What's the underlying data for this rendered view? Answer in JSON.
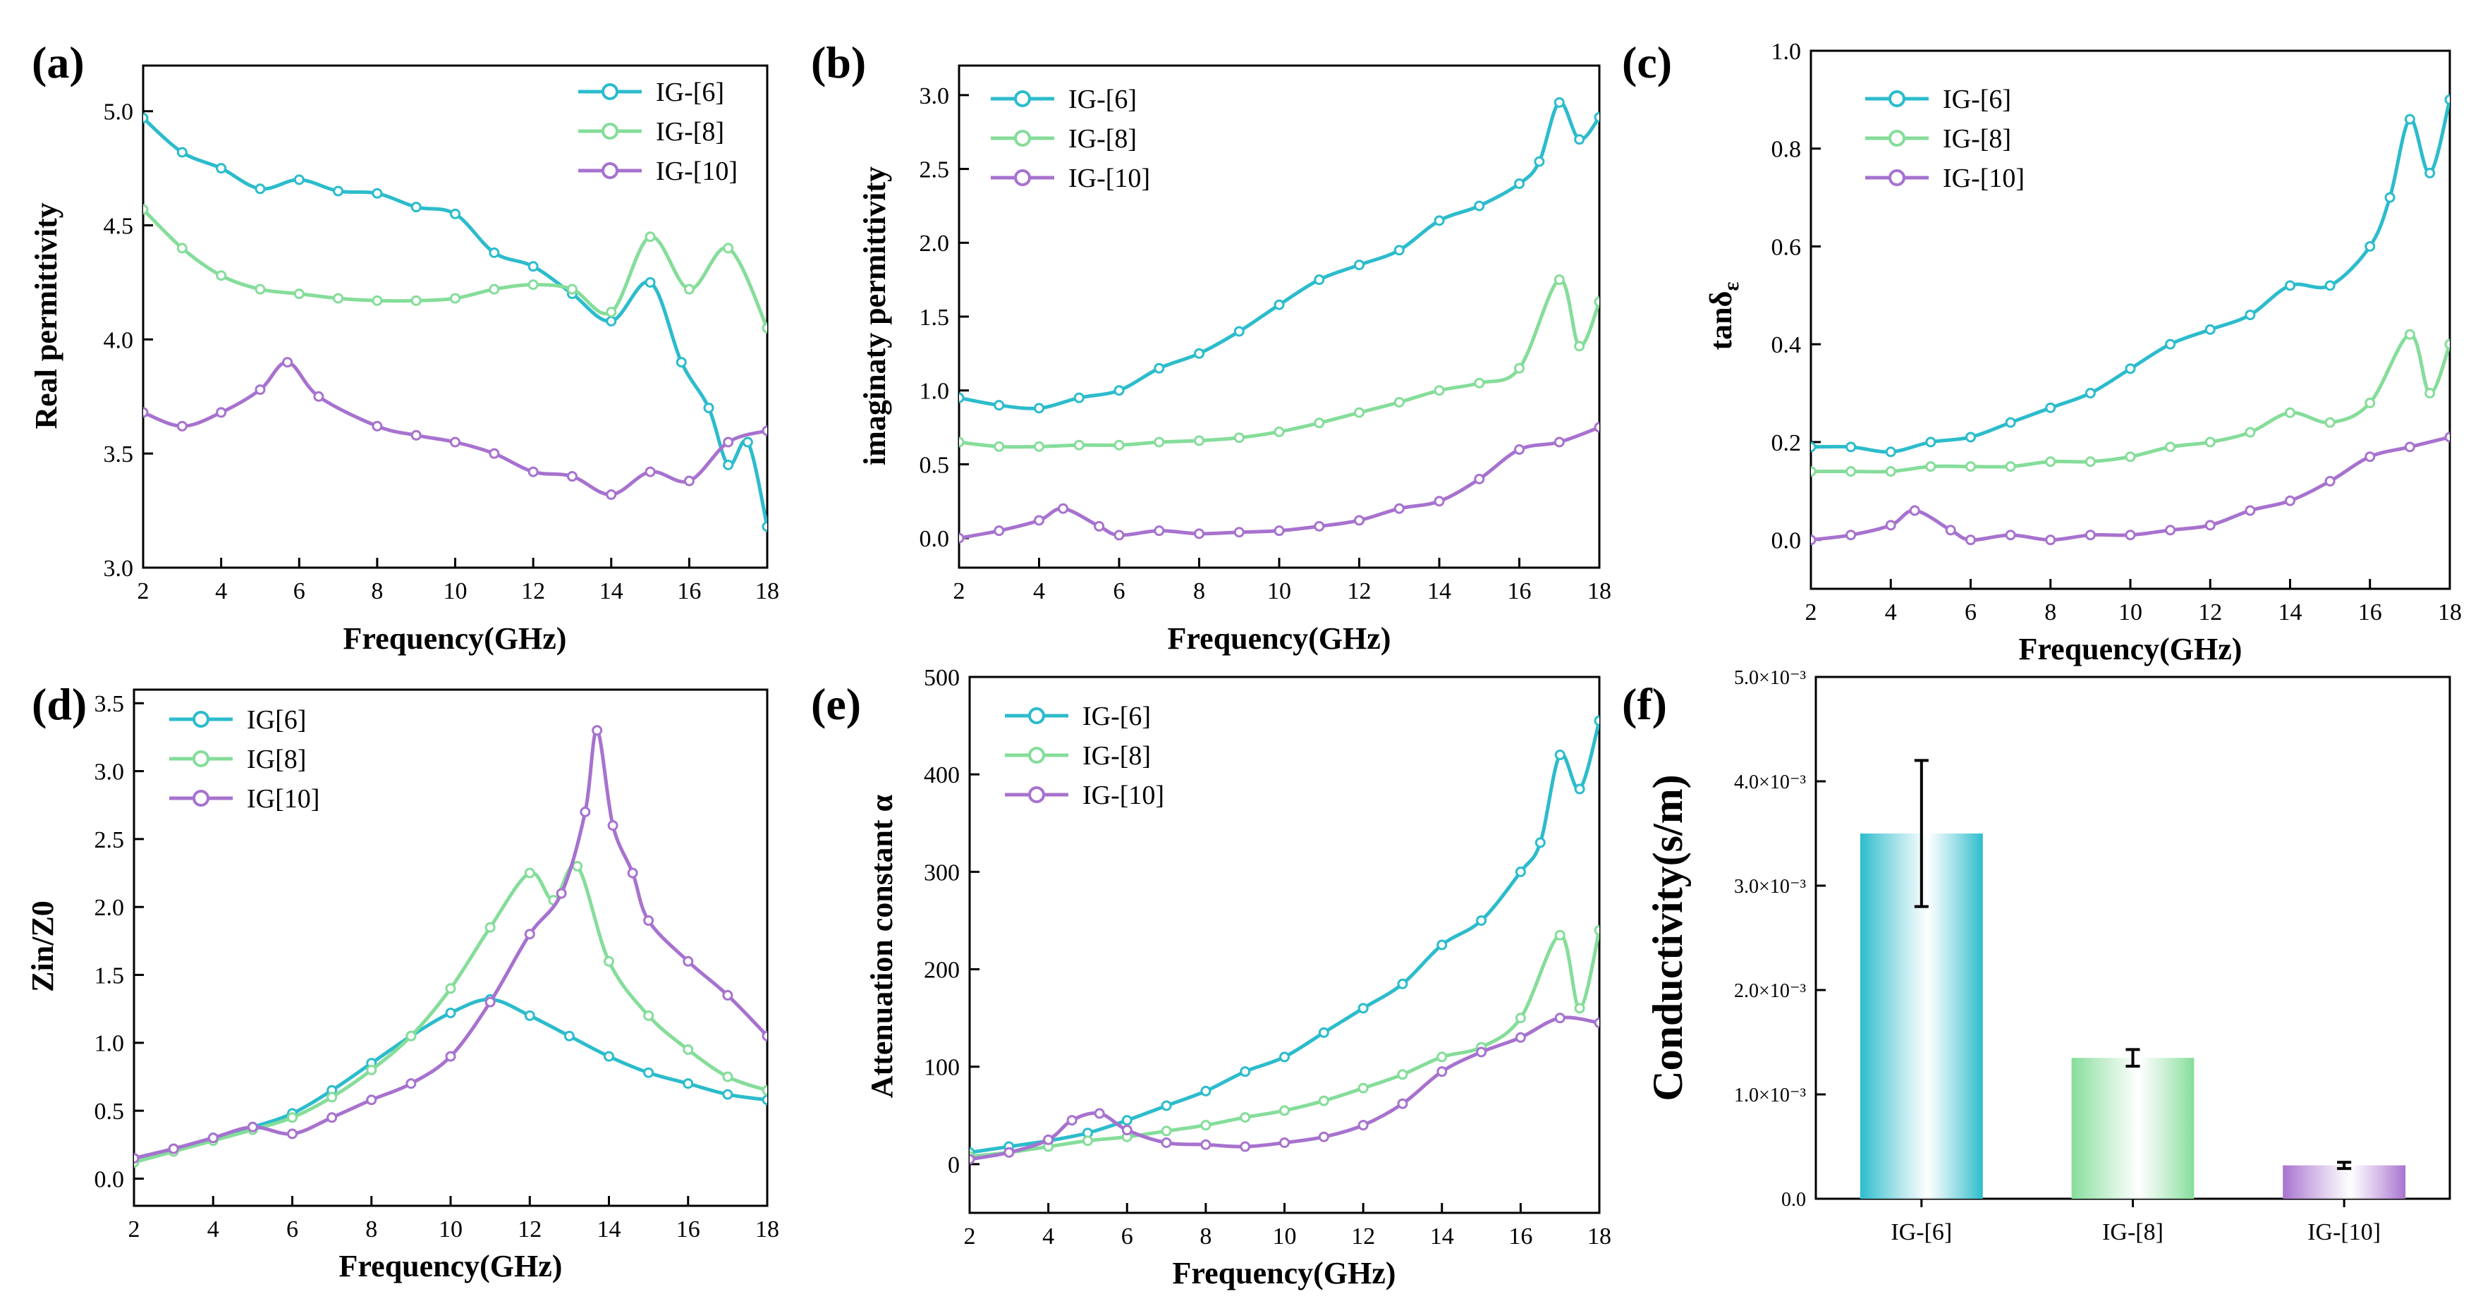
{
  "figure": {
    "colors": {
      "IG6": "#2cbccc",
      "IG8": "#85dd9a",
      "IG10": "#a772cf"
    }
  },
  "chart_data": [
    {
      "id": "a",
      "label": "(a)",
      "type": "line",
      "xlabel": "Frequency(GHz)",
      "ylabel": "Real permittivity",
      "xlim": [
        2,
        18
      ],
      "ylim": [
        3.0,
        5.2
      ],
      "xticks": [
        2,
        4,
        6,
        8,
        10,
        12,
        14,
        16,
        18
      ],
      "yticks": [
        3.0,
        3.5,
        4.0,
        4.5,
        5.0
      ],
      "xtick_labels": [
        "2",
        "4",
        "6",
        "8",
        "10",
        "12",
        "14",
        "16",
        "18"
      ],
      "ytick_labels": [
        "3.0",
        "3.5",
        "4.0",
        "4.5",
        "5.0"
      ],
      "legend": [
        "IG-[6]",
        "IG-[8]",
        "IG-[10]"
      ],
      "series": [
        {
          "name": "IG-[6]",
          "color": "#2cbccc",
          "x": [
            2,
            3,
            4,
            5,
            6,
            7,
            8,
            9,
            10,
            11,
            12,
            13,
            14,
            15,
            15.8,
            16.5,
            17,
            17.5,
            18
          ],
          "y": [
            4.97,
            4.82,
            4.75,
            4.66,
            4.7,
            4.65,
            4.64,
            4.58,
            4.55,
            4.38,
            4.32,
            4.2,
            4.08,
            4.25,
            3.9,
            3.7,
            3.45,
            3.55,
            3.18
          ]
        },
        {
          "name": "IG-[8]",
          "color": "#85dd9a",
          "x": [
            2,
            3,
            4,
            5,
            6,
            7,
            8,
            9,
            10,
            11,
            12,
            13,
            14,
            15,
            16,
            17,
            18
          ],
          "y": [
            4.57,
            4.4,
            4.28,
            4.22,
            4.2,
            4.18,
            4.17,
            4.17,
            4.18,
            4.22,
            4.24,
            4.22,
            4.12,
            4.45,
            4.22,
            4.4,
            4.05
          ]
        },
        {
          "name": "IG-[10]",
          "color": "#a772cf",
          "x": [
            2,
            3,
            4,
            5,
            5.7,
            6.5,
            8,
            9,
            10,
            11,
            12,
            13,
            14,
            15,
            16,
            17,
            18
          ],
          "y": [
            3.68,
            3.62,
            3.68,
            3.78,
            3.9,
            3.75,
            3.62,
            3.58,
            3.55,
            3.5,
            3.42,
            3.4,
            3.32,
            3.42,
            3.38,
            3.55,
            3.6
          ]
        }
      ]
    },
    {
      "id": "b",
      "label": "(b)",
      "type": "line",
      "xlabel": "Frequency(GHz)",
      "ylabel": "imaginaty permittivity",
      "xlim": [
        2,
        18
      ],
      "ylim": [
        -0.2,
        3.2
      ],
      "xticks": [
        2,
        4,
        6,
        8,
        10,
        12,
        14,
        16,
        18
      ],
      "yticks": [
        0.0,
        0.5,
        1.0,
        1.5,
        2.0,
        2.5,
        3.0
      ],
      "xtick_labels": [
        "2",
        "4",
        "6",
        "8",
        "10",
        "12",
        "14",
        "16",
        "18"
      ],
      "ytick_labels": [
        "0.0",
        "0.5",
        "1.0",
        "1.5",
        "2.0",
        "2.5",
        "3.0"
      ],
      "legend": [
        "IG-[6]",
        "IG-[8]",
        "IG-[10]"
      ],
      "series": [
        {
          "name": "IG-[6]",
          "color": "#2cbccc",
          "x": [
            2,
            3,
            4,
            5,
            6,
            7,
            8,
            9,
            10,
            11,
            12,
            13,
            14,
            15,
            16,
            16.5,
            17,
            17.5,
            18
          ],
          "y": [
            0.95,
            0.9,
            0.88,
            0.95,
            1.0,
            1.15,
            1.25,
            1.4,
            1.58,
            1.75,
            1.85,
            1.95,
            2.15,
            2.25,
            2.4,
            2.55,
            2.95,
            2.7,
            2.85
          ]
        },
        {
          "name": "IG-[8]",
          "color": "#85dd9a",
          "x": [
            2,
            3,
            4,
            5,
            6,
            7,
            8,
            9,
            10,
            11,
            12,
            13,
            14,
            15,
            16,
            17,
            17.5,
            18
          ],
          "y": [
            0.65,
            0.62,
            0.62,
            0.63,
            0.63,
            0.65,
            0.66,
            0.68,
            0.72,
            0.78,
            0.85,
            0.92,
            1.0,
            1.05,
            1.15,
            1.75,
            1.3,
            1.6
          ]
        },
        {
          "name": "IG-[10]",
          "color": "#a772cf",
          "x": [
            2,
            3,
            4,
            4.6,
            5.5,
            6,
            7,
            8,
            9,
            10,
            11,
            12,
            13,
            14,
            15,
            16,
            17,
            18
          ],
          "y": [
            0.0,
            0.05,
            0.12,
            0.2,
            0.08,
            0.02,
            0.05,
            0.03,
            0.04,
            0.05,
            0.08,
            0.12,
            0.2,
            0.25,
            0.4,
            0.6,
            0.65,
            0.75
          ]
        }
      ]
    },
    {
      "id": "c",
      "label": "(c)",
      "type": "line",
      "xlabel": "Frequency(GHz)",
      "ylabel": "tanδ",
      "ylabel_sub": "ε",
      "xlim": [
        2,
        18
      ],
      "ylim": [
        -0.1,
        1.0
      ],
      "xticks": [
        2,
        4,
        6,
        8,
        10,
        12,
        14,
        16,
        18
      ],
      "yticks": [
        0.0,
        0.2,
        0.4,
        0.6,
        0.8,
        1.0
      ],
      "xtick_labels": [
        "2",
        "4",
        "6",
        "8",
        "10",
        "12",
        "14",
        "16",
        "18"
      ],
      "ytick_labels": [
        "0.0",
        "0.2",
        "0.4",
        "0.6",
        "0.8",
        "1.0"
      ],
      "legend": [
        "IG-[6]",
        "IG-[8]",
        "IG-[10]"
      ],
      "series": [
        {
          "name": "IG-[6]",
          "color": "#2cbccc",
          "x": [
            2,
            3,
            4,
            5,
            6,
            7,
            8,
            9,
            10,
            11,
            12,
            13,
            14,
            15,
            16,
            16.5,
            17,
            17.5,
            18
          ],
          "y": [
            0.19,
            0.19,
            0.18,
            0.2,
            0.21,
            0.24,
            0.27,
            0.3,
            0.35,
            0.4,
            0.43,
            0.46,
            0.52,
            0.52,
            0.6,
            0.7,
            0.86,
            0.75,
            0.9
          ]
        },
        {
          "name": "IG-[8]",
          "color": "#85dd9a",
          "x": [
            2,
            3,
            4,
            5,
            6,
            7,
            8,
            9,
            10,
            11,
            12,
            13,
            14,
            15,
            16,
            17,
            17.5,
            18
          ],
          "y": [
            0.14,
            0.14,
            0.14,
            0.15,
            0.15,
            0.15,
            0.16,
            0.16,
            0.17,
            0.19,
            0.2,
            0.22,
            0.26,
            0.24,
            0.28,
            0.42,
            0.3,
            0.4
          ]
        },
        {
          "name": "IG-[10]",
          "color": "#a772cf",
          "x": [
            2,
            3,
            4,
            4.6,
            5.5,
            6,
            7,
            8,
            9,
            10,
            11,
            12,
            13,
            14,
            15,
            16,
            17,
            18
          ],
          "y": [
            0.0,
            0.01,
            0.03,
            0.06,
            0.02,
            0.0,
            0.01,
            0.0,
            0.01,
            0.01,
            0.02,
            0.03,
            0.06,
            0.08,
            0.12,
            0.17,
            0.19,
            0.21
          ]
        }
      ]
    },
    {
      "id": "d",
      "label": "(d)",
      "type": "line",
      "xlabel": "Frequency(GHz)",
      "ylabel": "Zin/Z0",
      "xlim": [
        2,
        18
      ],
      "ylim": [
        -0.2,
        3.6
      ],
      "xticks": [
        2,
        4,
        6,
        8,
        10,
        12,
        14,
        16,
        18
      ],
      "yticks": [
        0.0,
        0.5,
        1.0,
        1.5,
        2.0,
        2.5,
        3.0,
        3.5
      ],
      "xtick_labels": [
        "2",
        "4",
        "6",
        "8",
        "10",
        "12",
        "14",
        "16",
        "18"
      ],
      "ytick_labels": [
        "0.0",
        "0.5",
        "1.0",
        "1.5",
        "2.0",
        "2.5",
        "3.0",
        "3.5"
      ],
      "legend": [
        "IG[6]",
        "IG[8]",
        "IG[10]"
      ],
      "series": [
        {
          "name": "IG[6]",
          "color": "#2cbccc",
          "x": [
            2,
            3,
            4,
            5,
            6,
            7,
            8,
            9,
            10,
            11,
            12,
            13,
            14,
            15,
            16,
            17,
            18
          ],
          "y": [
            0.15,
            0.22,
            0.3,
            0.38,
            0.48,
            0.65,
            0.85,
            1.05,
            1.22,
            1.32,
            1.2,
            1.05,
            0.9,
            0.78,
            0.7,
            0.62,
            0.58
          ]
        },
        {
          "name": "IG[8]",
          "color": "#85dd9a",
          "x": [
            2,
            3,
            4,
            5,
            6,
            7,
            8,
            9,
            10,
            11,
            12,
            12.6,
            13.2,
            14,
            15,
            16,
            17,
            18
          ],
          "y": [
            0.12,
            0.2,
            0.28,
            0.36,
            0.45,
            0.6,
            0.8,
            1.05,
            1.4,
            1.85,
            2.25,
            2.05,
            2.3,
            1.6,
            1.2,
            0.95,
            0.75,
            0.65
          ]
        },
        {
          "name": "IG[10]",
          "color": "#a772cf",
          "x": [
            2,
            3,
            4,
            5,
            6,
            7,
            8,
            9,
            10,
            11,
            12,
            12.8,
            13.4,
            13.7,
            14.1,
            14.6,
            15,
            16,
            17,
            18
          ],
          "y": [
            0.15,
            0.22,
            0.3,
            0.38,
            0.33,
            0.45,
            0.58,
            0.7,
            0.9,
            1.3,
            1.8,
            2.1,
            2.7,
            3.3,
            2.6,
            2.25,
            1.9,
            1.6,
            1.35,
            1.05
          ]
        }
      ]
    },
    {
      "id": "e",
      "label": "(e)",
      "type": "line",
      "xlabel": "Frequency(GHz)",
      "ylabel": "Attenuation constant α",
      "xlim": [
        2,
        18
      ],
      "ylim": [
        -50,
        500
      ],
      "xticks": [
        2,
        4,
        6,
        8,
        10,
        12,
        14,
        16,
        18
      ],
      "yticks": [
        0,
        100,
        200,
        300,
        400,
        500
      ],
      "xtick_labels": [
        "2",
        "4",
        "6",
        "8",
        "10",
        "12",
        "14",
        "16",
        "18"
      ],
      "ytick_labels": [
        "0",
        "100",
        "200",
        "300",
        "400",
        "500"
      ],
      "legend": [
        "IG-[6]",
        "IG-[8]",
        "IG-[10]"
      ],
      "series": [
        {
          "name": "IG-[6]",
          "color": "#2cbccc",
          "x": [
            2,
            3,
            4,
            5,
            6,
            7,
            8,
            9,
            10,
            11,
            12,
            13,
            14,
            15,
            16,
            16.5,
            17,
            17.5,
            18
          ],
          "y": [
            12,
            18,
            24,
            32,
            45,
            60,
            75,
            95,
            110,
            135,
            160,
            185,
            225,
            250,
            300,
            330,
            420,
            385,
            455
          ]
        },
        {
          "name": "IG-[8]",
          "color": "#85dd9a",
          "x": [
            2,
            3,
            4,
            5,
            6,
            7,
            8,
            9,
            10,
            11,
            12,
            13,
            14,
            15,
            16,
            17,
            17.5,
            18
          ],
          "y": [
            8,
            12,
            18,
            24,
            28,
            34,
            40,
            48,
            55,
            65,
            78,
            92,
            110,
            120,
            150,
            235,
            160,
            240
          ]
        },
        {
          "name": "IG-[10]",
          "color": "#a772cf",
          "x": [
            2,
            3,
            4,
            4.6,
            5.3,
            6,
            7,
            8,
            9,
            10,
            11,
            12,
            13,
            14,
            15,
            16,
            17,
            18
          ],
          "y": [
            5,
            12,
            25,
            45,
            52,
            35,
            22,
            20,
            18,
            22,
            28,
            40,
            62,
            95,
            115,
            130,
            150,
            145
          ]
        }
      ]
    },
    {
      "id": "f",
      "label": "(f)",
      "type": "bar",
      "xlabel": "",
      "ylabel": "Conductivity(s/m)",
      "ylim": [
        0,
        0.005
      ],
      "yticks": [
        0,
        0.001,
        0.002,
        0.003,
        0.004,
        0.005
      ],
      "ytick_labels": [
        "0.0",
        "1.0×10⁻³",
        "2.0×10⁻³",
        "3.0×10⁻³",
        "4.0×10⁻³",
        "5.0×10⁻³"
      ],
      "categories": [
        "IG-[6]",
        "IG-[8]",
        "IG-[10]"
      ],
      "values": [
        0.0035,
        0.00135,
        0.00032
      ],
      "errors": [
        0.0007,
        8e-05,
        3e-05
      ],
      "colors": [
        "#2cbccc",
        "#85dd9a",
        "#a772cf"
      ]
    }
  ]
}
